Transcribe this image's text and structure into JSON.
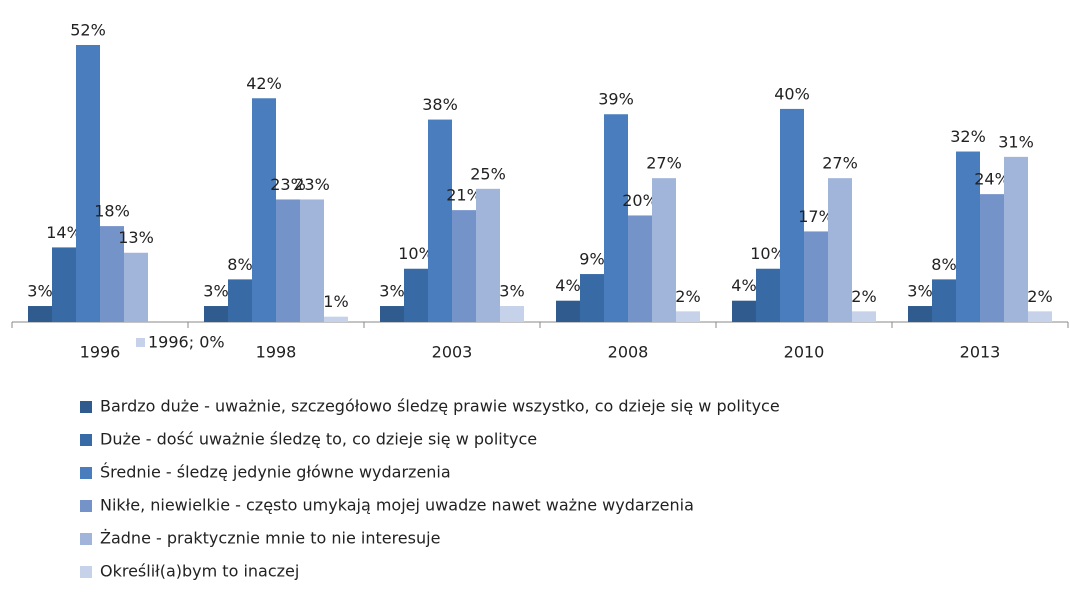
{
  "chart_data": {
    "type": "bar",
    "categories": [
      "1996",
      "1998",
      "2003",
      "2008",
      "2010",
      "2013"
    ],
    "ylim": [
      0,
      55
    ],
    "series": [
      {
        "name": "Bardzo duże - uważnie, szczegółowo śledzę prawie wszystko, co dzieje się w polityce",
        "color": "#2f5b8e",
        "values": [
          3,
          3,
          3,
          4,
          4,
          3
        ],
        "value_labels": [
          "3%",
          "3%",
          "3%",
          "4%",
          "4%",
          "3%"
        ]
      },
      {
        "name": "Duże - dość uważnie śledzę to, co dzieje się w polityce",
        "color": "#386aa6",
        "values": [
          14,
          8,
          10,
          9,
          10,
          8
        ],
        "value_labels": [
          "14%",
          "8%",
          "10%",
          "9%",
          "10%",
          "8%"
        ]
      },
      {
        "name": "Średnie - śledzę jedynie główne wydarzenia",
        "color": "#4a7dbe",
        "values": [
          52,
          42,
          38,
          39,
          40,
          32
        ],
        "value_labels": [
          "52%",
          "42%",
          "38%",
          "39%",
          "40%",
          "32%"
        ]
      },
      {
        "name": "Nikłe, niewielkie - często umykają mojej uwadze nawet ważne wydarzenia",
        "color": "#7493c9",
        "values": [
          18,
          23,
          21,
          20,
          17,
          24
        ],
        "value_labels": [
          "18%",
          "23%",
          "21%",
          "20%",
          "17%",
          "24%"
        ]
      },
      {
        "name": "Żadne - praktycznie mnie to nie interesuje",
        "color": "#a1b4da",
        "values": [
          13,
          23,
          25,
          27,
          27,
          31
        ],
        "value_labels": [
          "13%",
          "23%",
          "25%",
          "27%",
          "27%",
          "31%"
        ]
      },
      {
        "name": "Określił(a)bym to inaczej",
        "color": "#c6d2e9",
        "values": [
          0,
          1,
          3,
          2,
          2,
          2
        ],
        "value_labels": [
          "1996; 0%",
          "1%",
          "3%",
          "2%",
          "2%",
          "2%"
        ]
      }
    ]
  }
}
